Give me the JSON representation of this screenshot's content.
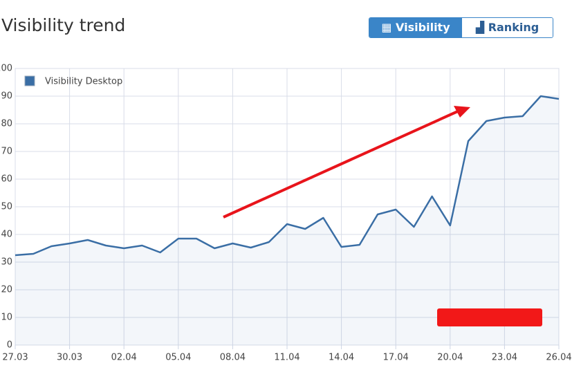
{
  "header": {
    "title": "Visibility trend",
    "buttons": [
      "Visibility",
      "Ranking"
    ]
  },
  "chart_data": {
    "type": "line",
    "categories": [
      "27.03",
      null,
      null,
      "30.03",
      null,
      null,
      "02.04",
      null,
      null,
      "05.04",
      null,
      null,
      "08.04",
      null,
      null,
      "11.04",
      null,
      null,
      "14.04",
      null,
      null,
      "17.04",
      null,
      null,
      "20.04",
      null,
      null,
      "23.04",
      null,
      null,
      "26.04"
    ],
    "series": [
      {
        "name": "Visibility Desktop",
        "color": "#3a6ea5",
        "values": [
          32.5,
          33,
          35.75,
          36.75,
          38,
          36,
          35,
          36,
          33.5,
          38.5,
          38.5,
          35,
          36.75,
          35.25,
          37.25,
          43.75,
          42,
          46,
          35.5,
          36.25,
          47.25,
          49,
          42.75,
          53.75,
          43.25,
          73.75,
          81,
          82.25,
          82.75,
          90,
          89
        ]
      }
    ],
    "ylim": [
      0,
      100
    ],
    "yticks": [
      0,
      10,
      20,
      30,
      40,
      50,
      60,
      70,
      80,
      90,
      100
    ],
    "grid": true
  }
}
